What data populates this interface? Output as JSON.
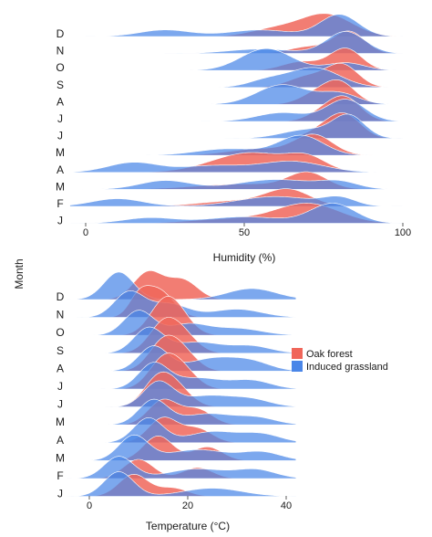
{
  "figure": {
    "shared_ylabel": "Month"
  },
  "legend": [
    {
      "label": "Oak forest",
      "color": "#f0665a"
    },
    {
      "label": "Induced grassland",
      "color": "#4a86e8"
    }
  ],
  "colors": {
    "oak": "#f0665a",
    "grass": "#4a86e8",
    "overlap": "#56609f"
  },
  "chart_data": [
    {
      "type": "ridgeline",
      "xlabel": "Humidity (%)",
      "ylabel": "Month",
      "xlim": [
        -5,
        100
      ],
      "xticks": [
        0,
        50,
        100
      ],
      "grid": false,
      "legend": "none",
      "months": [
        "D",
        "N",
        "O",
        "S",
        "A",
        "J",
        "J",
        "M",
        "A",
        "M",
        "F",
        "J"
      ],
      "series": [
        {
          "name": "Oak forest",
          "peaks": [
            [
              [
                76,
                8,
                1.0
              ],
              [
                60,
                8,
                0.35
              ]
            ],
            [
              [
                83,
                5,
                1.0
              ],
              [
                70,
                6,
                0.3
              ]
            ],
            [
              [
                82,
                5,
                1.0
              ],
              [
                68,
                6,
                0.4
              ]
            ],
            [
              [
                81,
                5,
                1.0
              ],
              [
                70,
                6,
                0.5
              ]
            ],
            [
              [
                80,
                5,
                1.0
              ],
              [
                72,
                5,
                0.4
              ]
            ],
            [
              [
                82,
                5,
                1.0
              ],
              [
                75,
                5,
                0.4
              ]
            ],
            [
              [
                82,
                5,
                1.0
              ],
              [
                75,
                5,
                0.4
              ]
            ],
            [
              [
                72,
                6,
                0.9
              ],
              [
                55,
                10,
                0.3
              ]
            ],
            [
              [
                52,
                12,
                0.9
              ],
              [
                70,
                6,
                0.55
              ]
            ],
            [
              [
                70,
                6,
                0.7
              ],
              [
                50,
                15,
                0.25
              ]
            ],
            [
              [
                64,
                7,
                0.7
              ],
              [
                48,
                12,
                0.25
              ]
            ],
            [
              [
                70,
                10,
                0.9
              ],
              [
                45,
                12,
                0.2
              ]
            ]
          ]
        },
        {
          "name": "Induced grassland",
          "peaks": [
            [
              [
                80,
                6,
                1.0
              ],
              [
                25,
                8,
                0.3
              ],
              [
                55,
                10,
                0.3
              ]
            ],
            [
              [
                82,
                6,
                1.0
              ],
              [
                55,
                10,
                0.2
              ]
            ],
            [
              [
                57,
                8,
                1.0
              ],
              [
                82,
                6,
                0.35
              ]
            ],
            [
              [
                72,
                8,
                0.9
              ],
              [
                57,
                6,
                0.3
              ]
            ],
            [
              [
                62,
                8,
                0.9
              ],
              [
                80,
                6,
                0.5
              ]
            ],
            [
              [
                82,
                6,
                1.0
              ],
              [
                62,
                8,
                0.4
              ]
            ],
            [
              [
                83,
                5,
                1.0
              ],
              [
                70,
                8,
                0.4
              ]
            ],
            [
              [
                68,
                7,
                0.9
              ],
              [
                45,
                10,
                0.3
              ]
            ],
            [
              [
                15,
                8,
                0.45
              ],
              [
                65,
                10,
                0.5
              ],
              [
                40,
                10,
                0.3
              ]
            ],
            [
              [
                25,
                8,
                0.4
              ],
              [
                60,
                12,
                0.45
              ],
              [
                80,
                6,
                0.3
              ]
            ],
            [
              [
                10,
                8,
                0.35
              ],
              [
                60,
                12,
                0.45
              ],
              [
                80,
                5,
                0.35
              ]
            ],
            [
              [
                78,
                7,
                0.9
              ],
              [
                20,
                8,
                0.25
              ],
              [
                50,
                12,
                0.3
              ]
            ]
          ]
        }
      ]
    },
    {
      "type": "ridgeline",
      "xlabel": "Temperature (°C)",
      "ylabel": "Month",
      "xlim": [
        -5,
        42
      ],
      "xticks": [
        0,
        20,
        40
      ],
      "grid": false,
      "legend": "right",
      "months": [
        "D",
        "N",
        "O",
        "S",
        "A",
        "J",
        "J",
        "M",
        "A",
        "M",
        "F",
        "J"
      ],
      "series": [
        {
          "name": "Oak forest",
          "peaks": [
            [
              [
                12,
                3,
                1.0
              ],
              [
                19,
                3,
                0.7
              ]
            ],
            [
              [
                14,
                3,
                1.0
              ],
              [
                10,
                2,
                0.6
              ]
            ],
            [
              [
                15,
                3,
                1.0
              ],
              [
                18,
                3,
                0.6
              ]
            ],
            [
              [
                15,
                3,
                1.0
              ],
              [
                19,
                3,
                0.6
              ]
            ],
            [
              [
                15,
                3,
                1.0
              ],
              [
                19,
                3,
                0.6
              ]
            ],
            [
              [
                15,
                3,
                1.0
              ],
              [
                19,
                3,
                0.6
              ]
            ],
            [
              [
                14,
                3,
                1.0
              ],
              [
                18,
                3,
                0.55
              ]
            ],
            [
              [
                15,
                3,
                0.9
              ],
              [
                22,
                3,
                0.55
              ]
            ],
            [
              [
                15,
                3,
                0.9
              ],
              [
                22,
                3,
                0.5
              ]
            ],
            [
              [
                14,
                3,
                0.9
              ],
              [
                24,
                3,
                0.5
              ]
            ],
            [
              [
                10,
                3,
                0.7
              ],
              [
                22,
                3,
                0.4
              ]
            ],
            [
              [
                9,
                3,
                0.8
              ],
              [
                17,
                3,
                0.3
              ]
            ]
          ]
        },
        {
          "name": "Induced grassland",
          "peaks": [
            [
              [
                6,
                3,
                1.0
              ],
              [
                33,
                5,
                0.4
              ]
            ],
            [
              [
                8,
                3,
                0.9
              ],
              [
                16,
                4,
                0.5
              ],
              [
                30,
                5,
                0.3
              ]
            ],
            [
              [
                10,
                3,
                0.9
              ],
              [
                20,
                4,
                0.4
              ],
              [
                30,
                5,
                0.25
              ]
            ],
            [
              [
                12,
                3,
                0.9
              ],
              [
                22,
                5,
                0.4
              ],
              [
                33,
                4,
                0.25
              ]
            ],
            [
              [
                13,
                3,
                0.9
              ],
              [
                25,
                5,
                0.45
              ],
              [
                33,
                4,
                0.3
              ]
            ],
            [
              [
                13,
                3,
                0.9
              ],
              [
                22,
                5,
                0.4
              ],
              [
                33,
                4,
                0.3
              ]
            ],
            [
              [
                14,
                3,
                0.9
              ],
              [
                24,
                5,
                0.4
              ],
              [
                33,
                4,
                0.25
              ]
            ],
            [
              [
                13,
                3,
                0.9
              ],
              [
                24,
                5,
                0.4
              ],
              [
                34,
                4,
                0.25
              ]
            ],
            [
              [
                12,
                3,
                0.9
              ],
              [
                25,
                5,
                0.4
              ],
              [
                35,
                4,
                0.3
              ]
            ],
            [
              [
                9,
                3,
                0.9
              ],
              [
                22,
                6,
                0.4
              ],
              [
                35,
                4,
                0.3
              ]
            ],
            [
              [
                6,
                3,
                0.8
              ],
              [
                22,
                6,
                0.35
              ],
              [
                34,
                4,
                0.3
              ]
            ],
            [
              [
                6,
                3,
                0.9
              ],
              [
                25,
                6,
                0.3
              ]
            ]
          ]
        }
      ]
    }
  ]
}
